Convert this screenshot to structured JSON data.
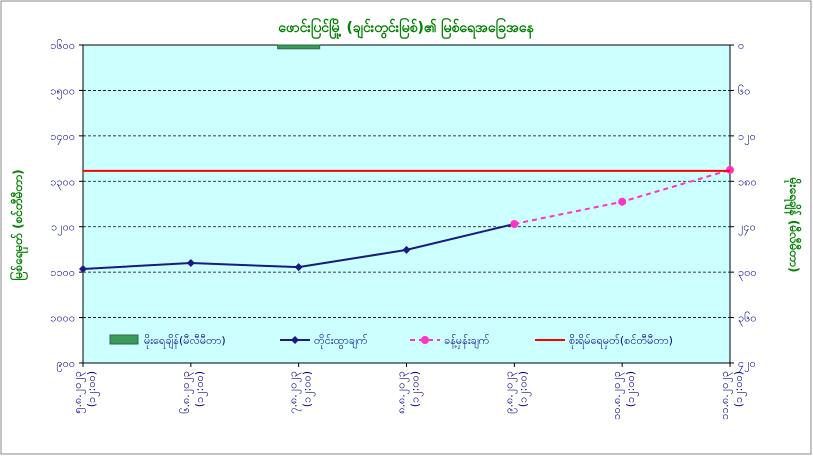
{
  "chart_data": {
    "type": "line",
    "title": "ဖောင်းပြင်မြို့ (ချင်းတွင်းမြစ်)၏ မြစ်ရေအခြေအနေ",
    "y_label": "မြစ်ရေမှတ် (စင်တီမီတာ)",
    "y2_label": "မိုးရေချိန် (မီလီမီတာ)",
    "categories": [
      "၅.၈.၂၀၂၃ (၁၂:၀၀)",
      "၆.၈.၂၀၂၃ (၁၂:၀၀)",
      "၇.၈.၂၀၂၃ (၁၂:၀၀)",
      "၈.၈.၂၀၂၃ (၁၂:၀၀)",
      "၉.၈.၂၀၂၃ (၁၂:၀၀)",
      "၁၀.၈.၂၀၂၃ (၁၂:၀၀)",
      "၁၁.၈.၂၀၂၃ (၁၂:၀၀)"
    ],
    "series": [
      {
        "name": "မိုးရေချိန်(မီလီမီတာ)",
        "type": "bar",
        "axis": "y2",
        "color": "#3a9a5a",
        "values": [
          null,
          null,
          5,
          null,
          null,
          null,
          null
        ]
      },
      {
        "name": "တိုင်းထွာချက်",
        "type": "line",
        "color": "#1a1a80",
        "marker": "diamond",
        "values": [
          1107,
          1120,
          1111,
          1149,
          1206,
          null,
          null
        ]
      },
      {
        "name": "ခန့်မှန်းချက်",
        "type": "line",
        "color": "#ff33cc",
        "marker": "circle",
        "dashed": true,
        "values": [
          null,
          null,
          null,
          null,
          1206,
          1255,
          1325
        ]
      },
      {
        "name": "စိုးရိမ်ရေမှတ်(စင်တီမီတာ)",
        "type": "hline",
        "color": "#ff0000",
        "value": 1323
      }
    ],
    "ylim": [
      900,
      1600
    ],
    "yticks": [
      {
        "value": 900,
        "label": "၉၀၀"
      },
      {
        "value": 1000,
        "label": "၁၀၀၀"
      },
      {
        "value": 1100,
        "label": "၁၁၀၀"
      },
      {
        "value": 1200,
        "label": "၁၂၀၀"
      },
      {
        "value": 1300,
        "label": "၁၃၀၀"
      },
      {
        "value": 1400,
        "label": "၁၄၀၀"
      },
      {
        "value": 1500,
        "label": "၁၅၀၀"
      },
      {
        "value": 1600,
        "label": "၁၆၀၀"
      }
    ],
    "y2lim": [
      420,
      0
    ],
    "y2ticks": [
      {
        "value": 0,
        "label": "၀"
      },
      {
        "value": 60,
        "label": "၆၀"
      },
      {
        "value": 120,
        "label": "၁၂၀"
      },
      {
        "value": 180,
        "label": "၁၈၀"
      },
      {
        "value": 240,
        "label": "၂၄၀"
      },
      {
        "value": 300,
        "label": "၃၀၀"
      },
      {
        "value": 360,
        "label": "၃၆၀"
      },
      {
        "value": 420,
        "label": "၄၂၀"
      }
    ],
    "grid": true
  }
}
